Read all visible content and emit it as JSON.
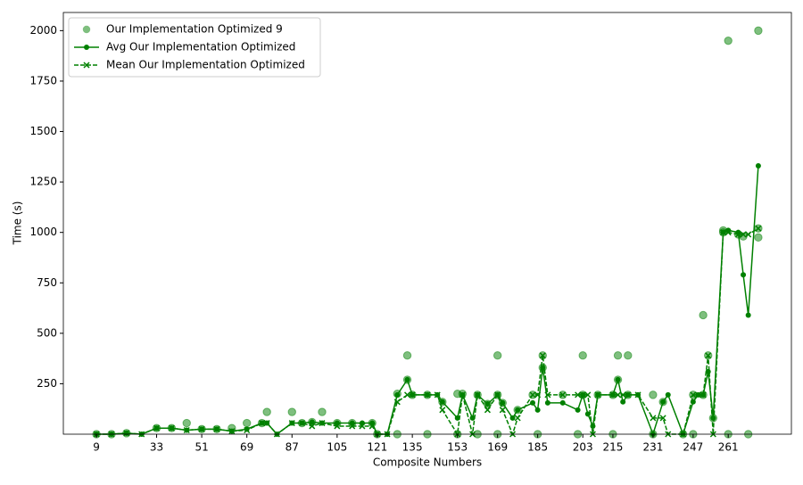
{
  "chart_data": {
    "type": "line",
    "xlabel": "Composite Numbers",
    "ylabel": "Time (s)",
    "xlim": [
      -4.2,
      286.2
    ],
    "ylim": [
      0,
      2090
    ],
    "xticks": [
      9,
      33,
      51,
      69,
      87,
      105,
      121,
      135,
      153,
      169,
      185,
      203,
      215,
      231,
      247,
      261
    ],
    "yticks": [
      250,
      500,
      750,
      1000,
      1250,
      1500,
      1750,
      2000
    ],
    "legend": "upper left",
    "x": [
      9,
      15,
      21,
      27,
      33,
      39,
      45,
      51,
      57,
      63,
      69,
      75,
      77,
      81,
      87,
      91,
      95,
      99,
      105,
      111,
      115,
      119,
      121,
      125,
      129,
      133,
      135,
      141,
      145,
      147,
      153,
      155,
      159,
      161,
      165,
      169,
      171,
      175,
      177,
      183,
      185,
      187,
      189,
      195,
      201,
      203,
      205,
      207,
      209,
      215,
      217,
      219,
      221,
      225,
      231,
      235,
      237,
      243,
      247,
      249,
      251,
      253,
      255,
      259,
      261,
      265,
      267,
      269,
      273
    ],
    "series": [
      {
        "name": "Our Implementation Optimized 9",
        "kind": "scatter",
        "color": "#008000",
        "x": [
          9,
          15,
          21,
          33,
          39,
          45,
          51,
          57,
          63,
          69,
          75,
          77,
          87,
          91,
          95,
          99,
          105,
          111,
          119,
          121,
          129,
          133,
          133,
          135,
          141,
          147,
          153,
          155,
          161,
          165,
          169,
          169,
          171,
          177,
          183,
          187,
          187,
          195,
          203,
          203,
          209,
          215,
          217,
          217,
          221,
          221,
          231,
          235,
          243,
          247,
          251,
          251,
          253,
          255,
          259,
          259,
          261,
          265,
          267,
          273,
          273,
          273,
          129,
          141,
          153,
          161,
          169,
          185,
          201,
          215,
          231,
          247,
          261,
          269
        ],
        "values": [
          0,
          0,
          5,
          30,
          30,
          55,
          25,
          25,
          30,
          55,
          55,
          110,
          110,
          55,
          60,
          110,
          55,
          55,
          55,
          0,
          200,
          390,
          270,
          195,
          195,
          160,
          200,
          200,
          195,
          150,
          390,
          195,
          155,
          120,
          195,
          390,
          330,
          195,
          390,
          195,
          195,
          195,
          390,
          270,
          390,
          195,
          195,
          160,
          0,
          195,
          590,
          195,
          390,
          80,
          1000,
          1010,
          1950,
          990,
          980,
          2000,
          1020,
          975,
          0,
          0,
          0,
          0,
          0,
          0,
          0,
          0,
          0,
          0,
          0,
          0
        ]
      },
      {
        "name": "Avg Our Implementation Optimized",
        "kind": "line",
        "color": "#008000",
        "values": [
          0,
          0,
          5,
          0,
          30,
          30,
          20,
          25,
          25,
          15,
          25,
          55,
          55,
          0,
          55,
          55,
          60,
          55,
          55,
          55,
          55,
          55,
          0,
          0,
          195,
          270,
          195,
          195,
          195,
          160,
          80,
          195,
          80,
          195,
          150,
          195,
          155,
          80,
          120,
          155,
          120,
          330,
          155,
          155,
          120,
          195,
          100,
          40,
          195,
          195,
          270,
          160,
          195,
          195,
          0,
          160,
          195,
          0,
          160,
          195,
          195,
          310,
          80,
          1000,
          1010,
          1000,
          790,
          590,
          1330
        ]
      },
      {
        "name": "Mean Our Implementation Optimized",
        "kind": "dashed",
        "color": "#008000",
        "values": [
          0,
          0,
          5,
          0,
          30,
          30,
          20,
          25,
          25,
          15,
          20,
          55,
          55,
          0,
          55,
          55,
          40,
          55,
          40,
          40,
          40,
          40,
          0,
          0,
          160,
          195,
          195,
          195,
          195,
          120,
          0,
          195,
          0,
          195,
          120,
          195,
          120,
          0,
          80,
          195,
          195,
          390,
          195,
          195,
          195,
          195,
          195,
          0,
          195,
          195,
          195,
          195,
          195,
          195,
          80,
          80,
          0,
          0,
          195,
          195,
          195,
          390,
          0,
          1000,
          1000,
          990,
          990,
          990,
          1020
        ]
      }
    ]
  }
}
